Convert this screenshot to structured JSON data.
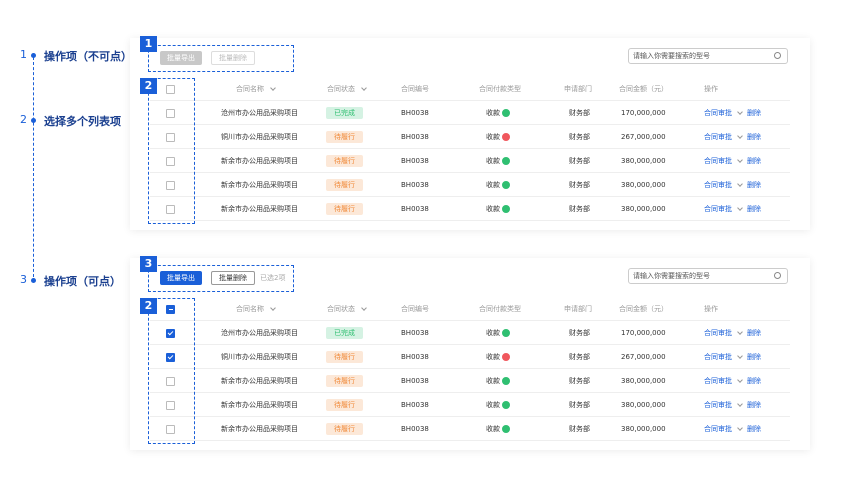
{
  "annotations": [
    {
      "number": "1",
      "label": "操作项（不可点）"
    },
    {
      "number": "2",
      "label": "选择多个列表项"
    },
    {
      "number": "3",
      "label": "操作项（可点）"
    }
  ],
  "panels": [
    {
      "toolbar": {
        "marker": "1",
        "buttons": [
          "批量导出",
          "批量删除"
        ],
        "enabled": false
      },
      "list_marker": "2",
      "search_placeholder": "请输入你需要搜索的型号",
      "columns": [
        "合同名称",
        "合同状态",
        "合同编号",
        "合同付款类型",
        "申请部门",
        "合同金额（元）",
        "操作"
      ],
      "header_checked": false,
      "rows": [
        {
          "checked": false,
          "cells": [
            "沧州市办公用品采购项目",
            "已完成",
            "BH0038",
            "收款",
            "财务部",
            "170,000,000",
            "合同审批",
            "删除"
          ],
          "status_color": "#2fbf71",
          "arrow_color": "#2fbf71"
        },
        {
          "checked": false,
          "cells": [
            "铜川市办公用品采购项目",
            "待履行",
            "BH0038",
            "收款",
            "财务部",
            "267,000,000",
            "合同审批",
            "删除"
          ],
          "status_color": "#f08a3a",
          "arrow_color": "#f0575d"
        },
        {
          "checked": false,
          "cells": [
            "新余市办公用品采购项目",
            "待履行",
            "BH0038",
            "收款",
            "财务部",
            "380,000,000",
            "合同审批",
            "删除"
          ],
          "status_color": "#f08a3a",
          "arrow_color": "#2fbf71"
        },
        {
          "checked": false,
          "cells": [
            "新余市办公用品采购项目",
            "待履行",
            "BH0038",
            "收款",
            "财务部",
            "380,000,000",
            "合同审批",
            "删除"
          ],
          "status_color": "#f08a3a",
          "arrow_color": "#2fbf71"
        },
        {
          "checked": false,
          "cells": [
            "新余市办公用品采购项目",
            "待履行",
            "BH0038",
            "收款",
            "财务部",
            "380,000,000",
            "合同审批",
            "删除"
          ],
          "status_color": "#f08a3a",
          "arrow_color": "#2fbf71"
        }
      ]
    },
    {
      "toolbar": {
        "marker": "3",
        "buttons": [
          "批量导出",
          "批量删除"
        ],
        "enabled": true,
        "selected_text": "已选2项"
      },
      "list_marker": "2",
      "search_placeholder": "请输入你需要搜索的型号",
      "columns": [
        "合同名称",
        "合同状态",
        "合同编号",
        "合同付款类型",
        "申请部门",
        "合同金额（元）",
        "操作"
      ],
      "header_checked": "partial",
      "rows": [
        {
          "checked": true,
          "cells": [
            "沧州市办公用品采购项目",
            "已完成",
            "BH0038",
            "收款",
            "财务部",
            "170,000,000",
            "合同审批",
            "删除"
          ],
          "status_color": "#2fbf71",
          "arrow_color": "#2fbf71"
        },
        {
          "checked": true,
          "cells": [
            "铜川市办公用品采购项目",
            "待履行",
            "BH0038",
            "收款",
            "财务部",
            "267,000,000",
            "合同审批",
            "删除"
          ],
          "status_color": "#f08a3a",
          "arrow_color": "#f0575d"
        },
        {
          "checked": false,
          "cells": [
            "新余市办公用品采购项目",
            "待履行",
            "BH0038",
            "收款",
            "财务部",
            "380,000,000",
            "合同审批",
            "删除"
          ],
          "status_color": "#f08a3a",
          "arrow_color": "#2fbf71"
        },
        {
          "checked": false,
          "cells": [
            "新余市办公用品采购项目",
            "待履行",
            "BH0038",
            "收款",
            "财务部",
            "380,000,000",
            "合同审批",
            "删除"
          ],
          "status_color": "#f08a3a",
          "arrow_color": "#2fbf71"
        },
        {
          "checked": false,
          "cells": [
            "新余市办公用品采购项目",
            "待履行",
            "BH0038",
            "收款",
            "财务部",
            "380,000,000",
            "合同审批",
            "删除"
          ],
          "status_color": "#f08a3a",
          "arrow_color": "#2fbf71"
        }
      ]
    }
  ]
}
